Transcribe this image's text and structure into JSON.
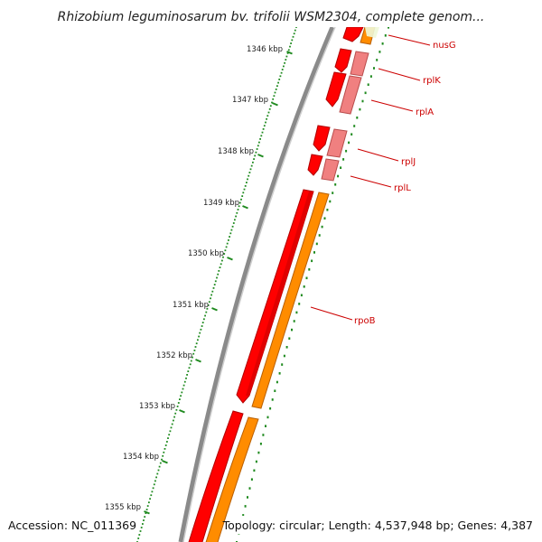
{
  "title": "Rhizobium leguminosarum bv. trifolii WSM2304, complete genom...",
  "footer": {
    "accession": "Accession: NC_011369",
    "topology": "Topology: circular; Length: 4,537,948 bp; Genes: 4,387"
  },
  "colors": {
    "backbone": "#8a8a8a",
    "ticks": "#1f8a1f",
    "gene_cds": "#ff0000",
    "gene_cds_dark": "#b00000",
    "protein": "#ff8c00",
    "protein_light": "#f08080",
    "label": "#cc0000"
  },
  "scale": {
    "unit": "kbp",
    "ticks": [
      {
        "kbp": 1346,
        "label": "1346 kbp"
      },
      {
        "kbp": 1347,
        "label": "1347 kbp"
      },
      {
        "kbp": 1348,
        "label": "1348 kbp"
      },
      {
        "kbp": 1349,
        "label": "1349 kbp"
      },
      {
        "kbp": 1350,
        "label": "1350 kbp"
      },
      {
        "kbp": 1351,
        "label": "1351 kbp"
      },
      {
        "kbp": 1352,
        "label": "1352 kbp"
      },
      {
        "kbp": 1353,
        "label": "1353 kbp"
      },
      {
        "kbp": 1354,
        "label": "1354 kbp"
      },
      {
        "kbp": 1355,
        "label": "1355 kbp"
      }
    ]
  },
  "genes": [
    {
      "name": "nusG"
    },
    {
      "name": "rplK"
    },
    {
      "name": "rplA"
    },
    {
      "name": "rplJ"
    },
    {
      "name": "rplL"
    },
    {
      "name": "rpoB"
    }
  ]
}
